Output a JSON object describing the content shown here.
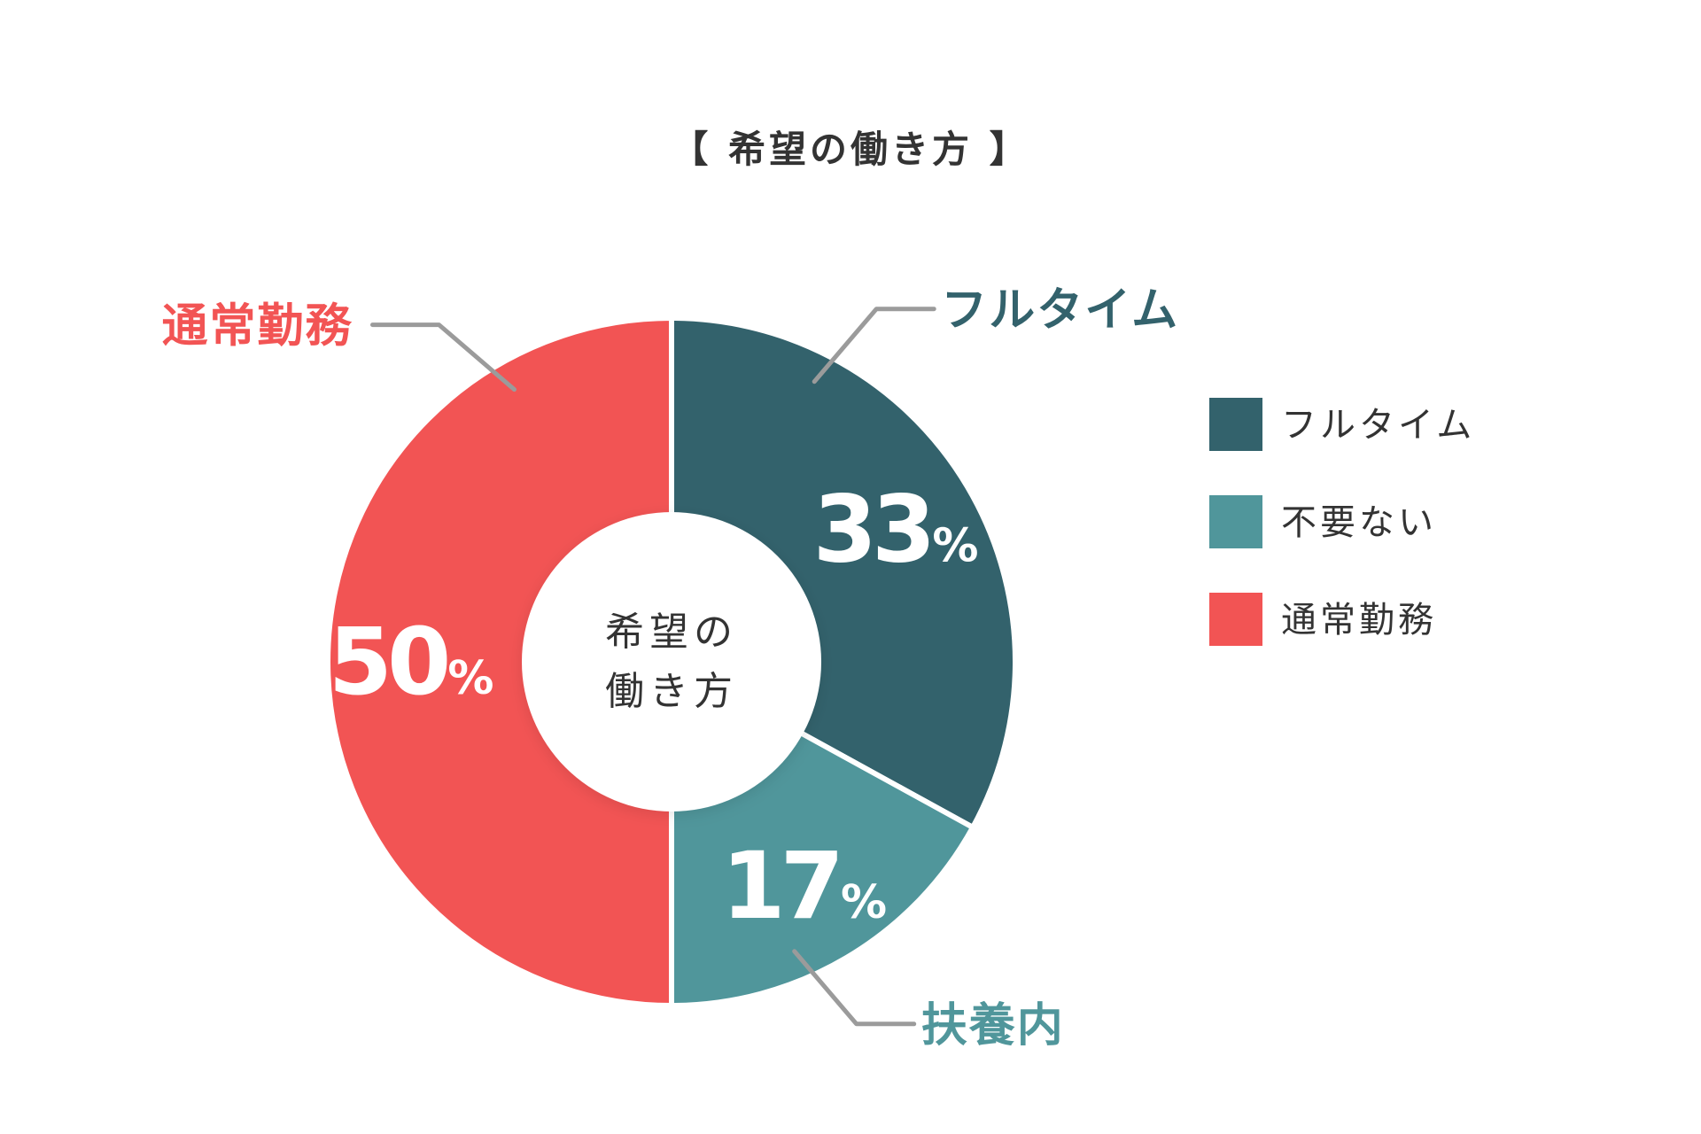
{
  "chart_data": {
    "type": "pie",
    "title": "【 希望の働き方 】",
    "center_label": [
      "希望の",
      "働き方"
    ],
    "legend_position": "right",
    "slices": [
      {
        "legend_label": "フルタイム",
        "callout_label": "フルタイム",
        "value": 33,
        "value_label": "33",
        "unit": "%",
        "color": "#33626c"
      },
      {
        "legend_label": "不要ない",
        "callout_label": "扶養内",
        "value": 17,
        "value_label": "17",
        "unit": "%",
        "color": "#50969b"
      },
      {
        "legend_label": "通常勤務",
        "callout_label": "通常勤務",
        "value": 50,
        "value_label": "50",
        "unit": "%",
        "color": "#f25454"
      }
    ],
    "leader_line_color": "#9b9b9b"
  }
}
